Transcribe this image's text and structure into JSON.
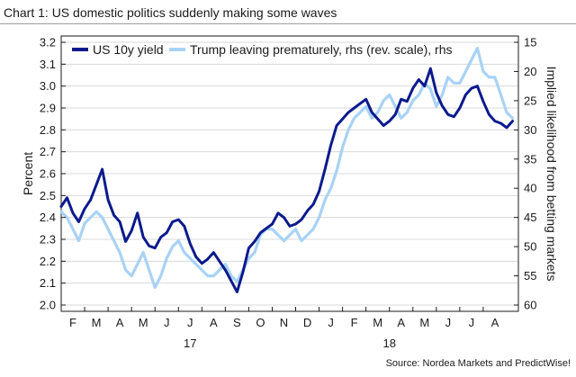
{
  "title": "Chart 1: US domestic politics suddenly making some waves",
  "source": "Source: Nordea Markets and PredictWise!",
  "chart_data": {
    "type": "line",
    "ylabel": "Percent",
    "y2label": "Implied likelihood from betting markets",
    "ylim": [
      2.0,
      3.2
    ],
    "yticks": [
      "2.0",
      "2.1",
      "2.2",
      "2.3",
      "2.4",
      "2.5",
      "2.6",
      "2.7",
      "2.8",
      "2.9",
      "3.0",
      "3.1",
      "3.2"
    ],
    "y2lim": [
      15,
      60
    ],
    "y2_reversed": true,
    "y2ticks": [
      "15",
      "20",
      "25",
      "30",
      "35",
      "40",
      "45",
      "50",
      "55",
      "60"
    ],
    "xlim": [
      0,
      19.5
    ],
    "month_labels": [
      "F",
      "M",
      "A",
      "M",
      "J",
      "J",
      "A",
      "S",
      "O",
      "N",
      "D",
      "J",
      "F",
      "M",
      "A",
      "M",
      "J",
      "J",
      "A"
    ],
    "year_labels": [
      {
        "label": "17",
        "x": 5.5
      },
      {
        "label": "18",
        "x": 14
      }
    ],
    "series": [
      {
        "name": "US 10y yield",
        "axis": "left",
        "color": "#0b1a8c",
        "x": [
          0,
          0.25,
          0.5,
          0.75,
          1,
          1.25,
          1.5,
          1.75,
          2,
          2.25,
          2.5,
          2.75,
          3,
          3.25,
          3.5,
          3.75,
          4,
          4.25,
          4.5,
          4.75,
          5,
          5.25,
          5.5,
          5.75,
          6,
          6.25,
          6.5,
          6.75,
          7,
          7.25,
          7.5,
          7.75,
          8,
          8.25,
          8.5,
          8.75,
          9,
          9.25,
          9.5,
          9.75,
          10,
          10.25,
          10.5,
          10.75,
          11,
          11.25,
          11.5,
          11.75,
          12,
          12.25,
          12.5,
          12.75,
          13,
          13.25,
          13.5,
          13.75,
          14,
          14.25,
          14.5,
          14.75,
          15,
          15.25,
          15.5,
          15.75,
          16,
          16.25,
          16.5,
          16.75,
          17,
          17.25,
          17.5,
          17.75,
          18,
          18.25,
          18.5,
          18.75,
          19,
          19.25
        ],
        "values": [
          2.45,
          2.49,
          2.42,
          2.38,
          2.44,
          2.48,
          2.55,
          2.62,
          2.48,
          2.41,
          2.38,
          2.29,
          2.34,
          2.42,
          2.31,
          2.27,
          2.26,
          2.31,
          2.33,
          2.38,
          2.39,
          2.36,
          2.28,
          2.22,
          2.19,
          2.21,
          2.24,
          2.2,
          2.16,
          2.11,
          2.06,
          2.15,
          2.26,
          2.29,
          2.33,
          2.35,
          2.37,
          2.42,
          2.4,
          2.36,
          2.37,
          2.39,
          2.43,
          2.46,
          2.52,
          2.62,
          2.73,
          2.82,
          2.85,
          2.88,
          2.9,
          2.92,
          2.94,
          2.88,
          2.85,
          2.82,
          2.84,
          2.87,
          2.94,
          2.93,
          2.99,
          3.03,
          3.0,
          3.08,
          2.97,
          2.91,
          2.87,
          2.86,
          2.9,
          2.96,
          2.99,
          3.0,
          2.93,
          2.87,
          2.84,
          2.83,
          2.81,
          2.84
        ]
      },
      {
        "name": "Trump leaving prematurely, rhs (rev. scale), rhs",
        "axis": "right",
        "color": "#a9d2f5",
        "x": [
          0,
          0.25,
          0.5,
          0.75,
          1,
          1.25,
          1.5,
          1.75,
          2,
          2.25,
          2.5,
          2.75,
          3,
          3.25,
          3.5,
          3.75,
          4,
          4.25,
          4.5,
          4.75,
          5,
          5.25,
          5.5,
          5.75,
          6,
          6.25,
          6.5,
          6.75,
          7,
          7.25,
          7.5,
          7.75,
          8,
          8.25,
          8.5,
          8.75,
          9,
          9.25,
          9.5,
          9.75,
          10,
          10.25,
          10.5,
          10.75,
          11,
          11.25,
          11.5,
          11.75,
          12,
          12.25,
          12.5,
          12.75,
          13,
          13.25,
          13.5,
          13.75,
          14,
          14.25,
          14.5,
          14.75,
          15,
          15.25,
          15.5,
          15.75,
          16,
          16.25,
          16.5,
          16.75,
          17,
          17.25,
          17.5,
          17.75,
          18,
          18.25,
          18.5,
          18.75,
          19,
          19.25
        ],
        "values": [
          44,
          45,
          47,
          49,
          46,
          45,
          44,
          45,
          47,
          49,
          51,
          54,
          55,
          53,
          51,
          54,
          57,
          55,
          52,
          50,
          49,
          51,
          52,
          53,
          54,
          55,
          55,
          54,
          53,
          55,
          56,
          54,
          52,
          51,
          48,
          47,
          47,
          48,
          49,
          48,
          47,
          49,
          48,
          47,
          45,
          42,
          40,
          37,
          33,
          30,
          28,
          27,
          26,
          28,
          27,
          25,
          24,
          26,
          28,
          27,
          25,
          24,
          22,
          23,
          26,
          24,
          21,
          22,
          22,
          20,
          18,
          16,
          20,
          21,
          21,
          24,
          27,
          28
        ]
      }
    ]
  }
}
